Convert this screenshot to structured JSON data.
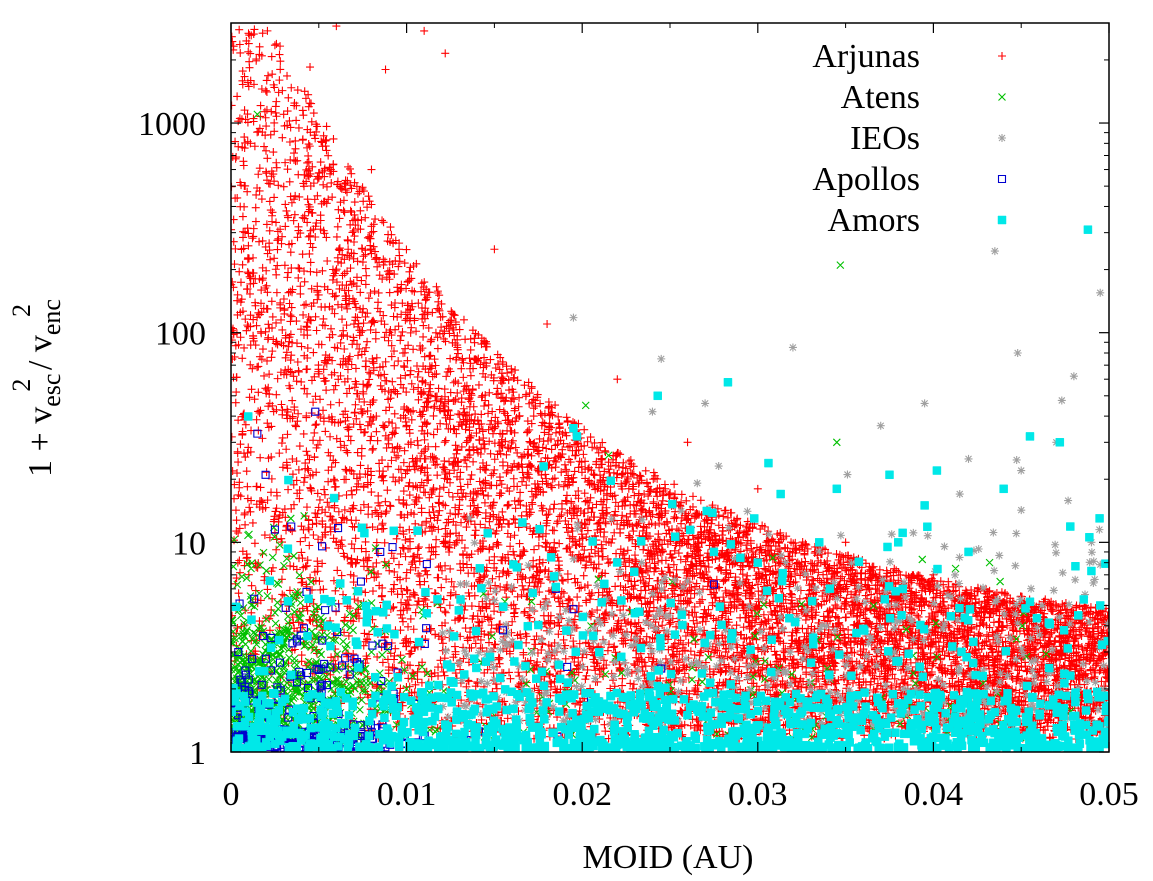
{
  "chart_data": {
    "type": "scatter",
    "title": "",
    "xlabel": "MOID (AU)",
    "ylabel_parts": {
      "lead": "1 + v",
      "sub1": "esc",
      "sup1": "2",
      "mid": " / v",
      "sub2": "enc",
      "sup2": "2"
    },
    "xscale": "linear",
    "yscale": "log",
    "xlim": [
      0,
      0.05
    ],
    "ylim": [
      1,
      3000
    ],
    "xticks": [
      0,
      0.01,
      0.02,
      0.03,
      0.04,
      0.05
    ],
    "xtick_labels": [
      "0",
      "0.01",
      "0.02",
      "0.03",
      "0.04",
      "0.05"
    ],
    "yticks": [
      1,
      10,
      100,
      1000
    ],
    "ytick_labels": [
      "1",
      "10",
      "100",
      "1000"
    ],
    "grid": false,
    "legend_position": "top-right",
    "series": [
      {
        "name": "Arjunas",
        "marker": "plus",
        "color": "#ff0000",
        "count": 26000,
        "generator": "dense cloud; upper envelope ~ exp(decaying with MOID): ~2500 near 0, ~50 at 0.02, ~5 at 0.05; bulk between 1.3 and 20",
        "sample_points": [
          [
            0.0025,
            2350
          ],
          [
            0.006,
            2900
          ],
          [
            0.011,
            2750
          ],
          [
            0.0122,
            2150
          ],
          [
            0.0045,
            1850
          ],
          [
            0.0088,
            1800
          ],
          [
            0.003,
            1100
          ],
          [
            0.008,
            600
          ],
          [
            0.015,
            250
          ],
          [
            0.018,
            110
          ],
          [
            0.022,
            60
          ],
          [
            0.026,
            30
          ],
          [
            0.03,
            18
          ],
          [
            0.035,
            10
          ],
          [
            0.04,
            7
          ],
          [
            0.045,
            5
          ],
          [
            0.05,
            4
          ]
        ]
      },
      {
        "name": "Atens",
        "marker": "x",
        "color": "#00c000",
        "count": 1200,
        "generator": "concentrated at MOID < 0.01 with values 1.3 to 10, sparse beyond",
        "sample_points": [
          [
            0.0015,
            1100
          ],
          [
            0.0347,
            210
          ],
          [
            0.0202,
            45
          ],
          [
            0.0215,
            26
          ],
          [
            0.0345,
            30
          ],
          [
            0.0438,
            6.5
          ],
          [
            0.0432,
            8
          ],
          [
            0.005,
            4
          ],
          [
            0.003,
            2.5
          ],
          [
            0.008,
            3
          ],
          [
            0.01,
            2
          ]
        ]
      },
      {
        "name": "IEOs",
        "marker": "star",
        "color": "#a0a0a0",
        "count": 700,
        "generator": "sparse, mostly MOID > 0.02 with values 1.5 to 100",
        "sample_points": [
          [
            0.0435,
            245
          ],
          [
            0.0495,
            155
          ],
          [
            0.0195,
            118
          ],
          [
            0.0448,
            80
          ],
          [
            0.0245,
            75
          ],
          [
            0.048,
            62
          ],
          [
            0.032,
            85
          ],
          [
            0.024,
            42
          ],
          [
            0.027,
            46
          ],
          [
            0.037,
            36
          ],
          [
            0.0395,
            46
          ],
          [
            0.045,
            22
          ],
          [
            0.047,
            30
          ],
          [
            0.0415,
            17
          ],
          [
            0.049,
            10
          ],
          [
            0.042,
            25
          ]
        ]
      },
      {
        "name": "Apollos",
        "marker": "open-square",
        "color": "#0000d0",
        "count": 350,
        "generator": "mostly MOID < 0.015, values 1 to 10, dense band near 1.1 at small MOID",
        "sample_points": [
          [
            0.0048,
            42
          ],
          [
            0.0015,
            33
          ],
          [
            0.0025,
            11.5
          ],
          [
            0.0085,
            9
          ],
          [
            0.0092,
            9.5
          ],
          [
            0.0043,
            5.8
          ],
          [
            0.0074,
            6.5
          ],
          [
            0.0023,
            3.5
          ],
          [
            0.0035,
            3.3
          ],
          [
            0.0052,
            3.4
          ],
          [
            0.0065,
            2.8
          ],
          [
            0.0275,
            6.3
          ],
          [
            0.0185,
            6
          ],
          [
            0.0195,
            4.8
          ],
          [
            0.0245,
            2.5
          ],
          [
            0.0205,
            1.8
          ]
        ]
      },
      {
        "name": "Amors",
        "marker": "filled-square",
        "color": "#00e8e8",
        "count": 1400,
        "generator": "dense band 1.05 to 1.8 across all MOID; scattered points up to ~60",
        "sample_points": [
          [
            0.0488,
            310
          ],
          [
            0.0283,
            58
          ],
          [
            0.0243,
            50
          ],
          [
            0.0195,
            35
          ],
          [
            0.0197,
            32
          ],
          [
            0.0178,
            23
          ],
          [
            0.0455,
            32
          ],
          [
            0.0472,
            30
          ],
          [
            0.044,
            18
          ],
          [
            0.0402,
            22
          ],
          [
            0.0375,
            21
          ],
          [
            0.0345,
            18
          ],
          [
            0.0313,
            17
          ],
          [
            0.0298,
            13
          ],
          [
            0.0275,
            9
          ],
          [
            0.0395,
            15
          ],
          [
            0.042,
            9
          ],
          [
            0.038,
            10
          ],
          [
            0.049,
            7.3
          ],
          [
            0.0495,
            5
          ],
          [
            0.0335,
            10
          ],
          [
            0.03,
            8
          ]
        ]
      }
    ]
  }
}
